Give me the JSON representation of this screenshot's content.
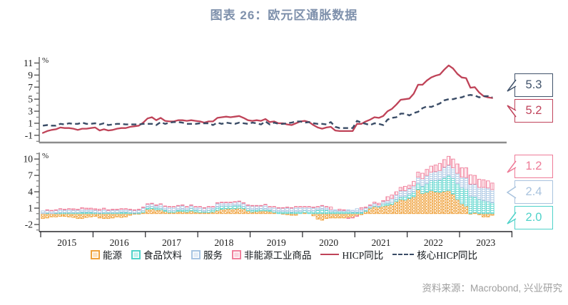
{
  "title": "图表 26：欧元区通胀数据",
  "source": "资料来源：Macrobond, 兴业研究",
  "colors": {
    "title": "#7f91ac",
    "hicp_line": "#bf4358",
    "core_hicp_line": "#3a4c66",
    "energy": "#efa13b",
    "food": "#4fd2c9",
    "services": "#a7c4e2",
    "neig": "#f07f9b",
    "source_text": "#9e9e9e"
  },
  "legend": [
    {
      "label": "能源",
      "color": "#efa13b",
      "type": "square"
    },
    {
      "label": "食品饮料",
      "color": "#4fd2c9",
      "type": "square"
    },
    {
      "label": "服务",
      "color": "#a7c4e2",
      "type": "square"
    },
    {
      "label": "非能源工业商品",
      "color": "#f07f9b",
      "type": "square"
    },
    {
      "label": "HICP同比",
      "color": "#bf4358",
      "type": "line-solid"
    },
    {
      "label": "核心HICP同比",
      "color": "#3a4c66",
      "type": "line-dashed"
    }
  ],
  "callouts": [
    {
      "value": "5.3",
      "color": "#41536b",
      "series": "核心HICP同比"
    },
    {
      "value": "5.2",
      "color": "#c0445c",
      "series": "HICP同比"
    },
    {
      "value": "1.2",
      "color": "#ee7b97",
      "series": "非能源工业商品"
    },
    {
      "value": "2.4",
      "color": "#a9c3de",
      "series": "服务"
    },
    {
      "value": "2.0",
      "color": "#4fd2c9",
      "series": "食品饮料"
    }
  ],
  "chart_data": [
    {
      "type": "line",
      "panel": "top",
      "unit": "%",
      "x_start": "2015-01",
      "x_end": "2023-08",
      "frequency": "monthly",
      "ylim": [
        -2.2,
        12.0
      ],
      "ytick_labels": [
        -1,
        1,
        3,
        5,
        7,
        9,
        11
      ],
      "grid": false,
      "legend_position": "bottom",
      "series": [
        {
          "name": "HICP同比",
          "color": "#bf4358",
          "style": "solid",
          "end_label": "5.2",
          "values": [
            -0.6,
            -0.3,
            -0.1,
            0.0,
            0.3,
            0.2,
            0.2,
            0.1,
            -0.1,
            0.1,
            0.1,
            0.2,
            0.3,
            -0.2,
            0.0,
            -0.2,
            -0.1,
            0.1,
            0.2,
            0.2,
            0.4,
            0.5,
            0.6,
            1.1,
            1.8,
            2.0,
            1.5,
            1.9,
            1.4,
            1.3,
            1.3,
            1.5,
            1.5,
            1.4,
            1.5,
            1.4,
            1.3,
            1.1,
            1.3,
            1.3,
            1.9,
            2.0,
            2.1,
            2.0,
            2.1,
            2.2,
            1.9,
            1.5,
            1.4,
            1.5,
            1.4,
            1.7,
            1.2,
            1.3,
            1.0,
            1.0,
            0.8,
            0.7,
            1.0,
            1.3,
            1.4,
            1.2,
            0.7,
            0.3,
            0.1,
            0.3,
            0.4,
            -0.2,
            -0.3,
            -0.3,
            -0.3,
            -0.3,
            0.9,
            0.9,
            1.3,
            1.6,
            2.0,
            1.9,
            2.2,
            3.0,
            3.4,
            4.1,
            4.9,
            5.0,
            5.1,
            5.9,
            7.4,
            7.4,
            8.1,
            8.6,
            8.9,
            9.1,
            9.9,
            10.6,
            10.1,
            9.2,
            8.6,
            8.5,
            6.9,
            7.0,
            6.1,
            5.5,
            5.3,
            5.2
          ]
        },
        {
          "name": "核心HICP同比",
          "color": "#3a4c66",
          "style": "dashed",
          "end_label": "5.3",
          "values": [
            0.6,
            0.7,
            0.6,
            0.6,
            0.9,
            0.8,
            1.0,
            0.9,
            0.9,
            1.1,
            0.9,
            0.9,
            1.0,
            0.8,
            1.0,
            0.7,
            0.8,
            0.9,
            0.9,
            0.8,
            0.8,
            0.8,
            0.8,
            0.9,
            0.9,
            0.9,
            0.7,
            1.2,
            0.9,
            1.1,
            1.2,
            1.2,
            1.1,
            0.9,
            0.9,
            0.9,
            1.0,
            1.0,
            1.0,
            0.7,
            1.1,
            0.9,
            1.1,
            1.0,
            0.9,
            1.1,
            1.0,
            0.9,
            1.1,
            1.0,
            0.8,
            1.3,
            0.8,
            1.1,
            0.9,
            0.9,
            1.0,
            1.1,
            1.3,
            1.3,
            1.1,
            1.2,
            1.0,
            0.9,
            0.9,
            0.8,
            1.2,
            0.4,
            0.2,
            0.2,
            0.2,
            0.2,
            1.4,
            1.1,
            0.9,
            0.7,
            1.0,
            0.9,
            0.7,
            1.6,
            1.9,
            2.0,
            2.6,
            2.6,
            2.3,
            2.7,
            2.9,
            3.5,
            3.8,
            3.7,
            4.0,
            4.3,
            4.8,
            5.0,
            5.0,
            5.2,
            5.3,
            5.6,
            5.7,
            5.6,
            5.3,
            5.5,
            5.5,
            5.3
          ]
        }
      ]
    },
    {
      "type": "stacked-bar",
      "panel": "bottom",
      "unit": "%",
      "x_start": "2015-01",
      "x_end": "2023-08",
      "frequency": "monthly",
      "ylim": [
        -3.3,
        11.2
      ],
      "ytick_labels": [
        -2,
        1,
        4,
        7,
        10
      ],
      "x_year_labels": [
        "2015",
        "2016",
        "2017",
        "2018",
        "2019",
        "2020",
        "2021",
        "2022",
        "2023"
      ],
      "grid": false,
      "series": [
        {
          "name": "能源",
          "color": "#efa13b",
          "pattern": "cross",
          "end_label": null,
          "values": [
            -0.9,
            -0.8,
            -0.6,
            -0.6,
            -0.5,
            -0.5,
            -0.6,
            -0.7,
            -0.9,
            -0.9,
            -0.7,
            -0.6,
            -0.5,
            -0.8,
            -0.9,
            -0.9,
            -0.8,
            -0.6,
            -0.7,
            -0.6,
            -0.3,
            -0.1,
            -0.1,
            0.2,
            0.8,
            0.9,
            0.7,
            0.7,
            0.4,
            0.2,
            0.2,
            0.4,
            0.4,
            0.3,
            0.5,
            0.3,
            0.2,
            0.2,
            0.2,
            0.3,
            0.6,
            0.8,
            0.9,
            0.9,
            0.9,
            1.0,
            0.9,
            0.5,
            0.3,
            0.4,
            0.5,
            0.5,
            0.4,
            0.2,
            0.0,
            -0.1,
            -0.2,
            -0.3,
            -0.3,
            0.0,
            0.2,
            0.0,
            -0.4,
            -1.0,
            -1.2,
            -0.9,
            -0.8,
            -0.8,
            -0.8,
            -0.8,
            -0.8,
            -0.7,
            -0.4,
            -0.2,
            0.4,
            1.0,
            1.3,
            1.2,
            1.4,
            1.5,
            1.7,
            2.2,
            2.6,
            2.5,
            2.8,
            3.1,
            4.4,
            3.7,
            3.9,
            4.2,
            4.0,
            3.9,
            4.1,
            4.2,
            3.6,
            2.6,
            1.8,
            1.4,
            -0.1,
            0.2,
            -0.2,
            -0.6,
            -0.6,
            -0.3
          ]
        },
        {
          "name": "食品饮料",
          "color": "#4fd2c9",
          "pattern": "hline",
          "end_label": "2.0",
          "values": [
            0.0,
            0.1,
            0.0,
            0.1,
            0.2,
            0.2,
            0.2,
            0.2,
            0.2,
            0.3,
            0.3,
            0.3,
            0.2,
            0.1,
            0.2,
            0.2,
            0.2,
            0.2,
            0.3,
            0.3,
            0.2,
            0.1,
            0.2,
            0.3,
            0.4,
            0.4,
            0.4,
            0.3,
            0.3,
            0.3,
            0.3,
            0.3,
            0.4,
            0.4,
            0.5,
            0.4,
            0.4,
            0.2,
            0.4,
            0.5,
            0.6,
            0.6,
            0.5,
            0.5,
            0.6,
            0.5,
            0.4,
            0.4,
            0.4,
            0.4,
            0.4,
            0.3,
            0.3,
            0.3,
            0.4,
            0.4,
            0.4,
            0.3,
            0.4,
            0.4,
            0.4,
            0.5,
            0.5,
            0.7,
            0.8,
            0.7,
            0.4,
            0.4,
            0.4,
            0.4,
            0.4,
            0.3,
            0.3,
            0.3,
            0.2,
            0.1,
            0.1,
            0.1,
            0.4,
            0.4,
            0.4,
            0.4,
            0.5,
            0.7,
            0.8,
            0.9,
            1.1,
            1.3,
            1.6,
            1.9,
            2.1,
            2.3,
            2.5,
            2.8,
            2.9,
            2.9,
            3.0,
            3.1,
            3.2,
            2.9,
            2.6,
            2.4,
            2.2,
            2.0
          ]
        },
        {
          "name": "服务",
          "color": "#a7c4e2",
          "pattern": "hline",
          "end_label": "2.4",
          "values": [
            0.5,
            0.5,
            0.5,
            0.5,
            0.6,
            0.5,
            0.6,
            0.5,
            0.5,
            0.6,
            0.5,
            0.5,
            0.5,
            0.5,
            0.6,
            0.4,
            0.5,
            0.5,
            0.5,
            0.5,
            0.5,
            0.5,
            0.5,
            0.6,
            0.5,
            0.5,
            0.4,
            0.7,
            0.6,
            0.7,
            0.7,
            0.7,
            0.7,
            0.5,
            0.5,
            0.5,
            0.6,
            0.6,
            0.6,
            0.4,
            0.7,
            0.6,
            0.6,
            0.6,
            0.6,
            0.7,
            0.6,
            0.6,
            0.7,
            0.6,
            0.5,
            0.8,
            0.5,
            0.7,
            0.6,
            0.6,
            0.7,
            0.7,
            0.8,
            0.8,
            0.6,
            0.7,
            0.6,
            0.5,
            0.6,
            0.5,
            0.4,
            0.3,
            0.2,
            0.2,
            0.3,
            0.3,
            0.6,
            0.5,
            0.5,
            0.4,
            0.5,
            0.3,
            0.4,
            0.5,
            0.7,
            0.9,
            1.1,
            1.0,
            1.0,
            1.1,
            1.2,
            1.4,
            1.5,
            1.5,
            1.6,
            1.7,
            1.9,
            1.9,
            1.9,
            1.9,
            1.9,
            2.1,
            2.2,
            2.3,
            2.2,
            2.4,
            2.5,
            2.4
          ]
        },
        {
          "name": "非能源工业商品",
          "color": "#f07f9b",
          "pattern": "vline",
          "end_label": "1.2",
          "values": [
            0.0,
            0.1,
            0.1,
            0.1,
            0.1,
            0.1,
            0.1,
            0.2,
            0.1,
            0.2,
            0.2,
            0.2,
            0.2,
            0.2,
            0.2,
            0.1,
            0.1,
            0.1,
            0.1,
            0.1,
            0.1,
            0.1,
            0.1,
            0.1,
            0.1,
            0.1,
            0.1,
            0.1,
            0.1,
            0.1,
            0.1,
            0.1,
            0.1,
            0.1,
            0.1,
            0.1,
            0.1,
            0.1,
            0.1,
            0.1,
            0.1,
            0.1,
            0.1,
            0.1,
            0.1,
            0.1,
            0.1,
            0.1,
            0.1,
            0.1,
            0.1,
            0.1,
            0.1,
            0.1,
            0.1,
            0.1,
            0.1,
            0.1,
            0.1,
            0.1,
            0.1,
            0.1,
            0.1,
            0.1,
            0.1,
            0.1,
            0.4,
            0.0,
            0.2,
            0.1,
            -0.1,
            -0.1,
            -0.1,
            0.3,
            0.1,
            0.1,
            0.2,
            0.3,
            0.2,
            0.7,
            0.6,
            0.5,
            0.6,
            0.8,
            0.6,
            0.8,
            0.9,
            1.0,
            1.1,
            1.1,
            1.2,
            1.3,
            1.4,
            1.6,
            1.6,
            1.7,
            1.7,
            1.8,
            1.7,
            1.6,
            1.5,
            1.4,
            1.3,
            1.2
          ]
        }
      ]
    }
  ]
}
